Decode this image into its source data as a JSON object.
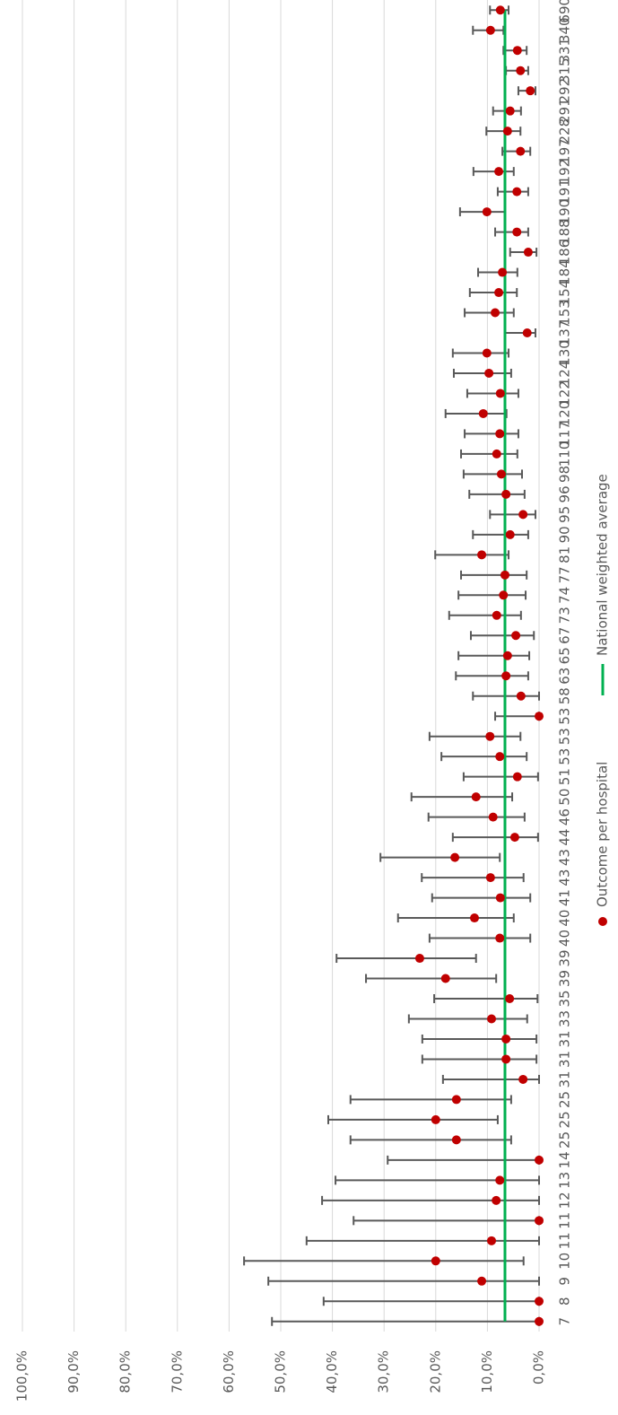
{
  "chart_data": {
    "type": "errorbar",
    "categories": [
      "7",
      "8",
      "9",
      "10",
      "11",
      "11",
      "12",
      "13",
      "14",
      "25",
      "25",
      "25",
      "31",
      "31",
      "31",
      "33",
      "35",
      "39",
      "39",
      "40",
      "40",
      "41",
      "43",
      "43",
      "44",
      "46",
      "50",
      "51",
      "53",
      "53",
      "53",
      "58",
      "63",
      "65",
      "67",
      "73",
      "74",
      "77",
      "81",
      "90",
      "95",
      "96",
      "98",
      "110",
      "117",
      "120",
      "122",
      "124",
      "130",
      "137",
      "153",
      "154",
      "184",
      "186",
      "188",
      "190",
      "191",
      "192",
      "197",
      "228",
      "291",
      "292",
      "315",
      "331",
      "340",
      "690"
    ],
    "series": [
      {
        "name": "Outcome per hospital",
        "color": "#c00000",
        "error_color": "#595959",
        "values": [
          0,
          0,
          11.1,
          20.0,
          9.2,
          0,
          8.3,
          7.6,
          0,
          16.0,
          20.0,
          16.0,
          3.1,
          6.4,
          6.4,
          9.2,
          5.7,
          18.1,
          23.1,
          7.6,
          12.5,
          7.5,
          9.4,
          16.3,
          4.7,
          8.9,
          12.2,
          4.2,
          7.6,
          9.5,
          0,
          3.5,
          6.4,
          6.1,
          4.5,
          8.2,
          6.9,
          6.6,
          11.1,
          5.6,
          3.1,
          6.4,
          7.3,
          8.2,
          7.6,
          10.8,
          7.5,
          9.7,
          10.1,
          2.3,
          8.5,
          7.8,
          7.1,
          2.1,
          4.3,
          10.1,
          4.3,
          7.8,
          3.6,
          6.1,
          5.6,
          1.7,
          3.6,
          4.2,
          9.4,
          7.5
        ],
        "low": [
          0,
          0,
          0,
          3.0,
          0,
          0,
          0,
          0,
          0,
          5.4,
          8.0,
          5.4,
          0,
          0.5,
          0.5,
          2.3,
          0.3,
          8.3,
          12.2,
          1.7,
          4.9,
          1.7,
          3.0,
          7.6,
          0.2,
          2.8,
          5.2,
          0.2,
          2.4,
          3.6,
          0,
          0,
          2.1,
          1.9,
          1.0,
          3.5,
          2.6,
          2.4,
          5.9,
          2.1,
          0.7,
          2.8,
          3.3,
          4.2,
          4.0,
          6.3,
          4.0,
          5.4,
          5.9,
          0.7,
          4.9,
          4.3,
          4.2,
          0.5,
          2.1,
          6.6,
          2.1,
          4.9,
          1.7,
          3.6,
          3.5,
          0.7,
          2.1,
          2.4,
          6.9,
          5.9
        ],
        "high": [
          51.7,
          41.7,
          52.4,
          57.1,
          45.0,
          35.9,
          42.0,
          39.4,
          29.3,
          36.5,
          40.8,
          36.5,
          18.6,
          22.6,
          22.6,
          25.2,
          20.3,
          33.5,
          39.2,
          21.2,
          27.3,
          20.7,
          22.7,
          30.7,
          16.7,
          21.4,
          24.7,
          14.6,
          18.9,
          21.2,
          8.5,
          12.8,
          16.1,
          15.6,
          13.2,
          17.4,
          15.6,
          15.1,
          20.1,
          12.8,
          9.5,
          13.5,
          14.6,
          15.1,
          14.4,
          18.1,
          13.9,
          16.5,
          16.7,
          6.6,
          14.4,
          13.4,
          11.8,
          5.6,
          8.5,
          15.3,
          8.0,
          12.7,
          7.1,
          10.2,
          8.9,
          4.0,
          6.4,
          6.9,
          12.8,
          9.5
        ]
      },
      {
        "name": "National weighted average",
        "color": "#00b050",
        "value": 6.6
      }
    ],
    "ylim": [
      0,
      100
    ],
    "yticks": [
      {
        "value": 0,
        "label": "0,0%"
      },
      {
        "value": 10,
        "label": "10,0%"
      },
      {
        "value": 20,
        "label": "20,0%"
      },
      {
        "value": 30,
        "label": "30,0%"
      },
      {
        "value": 40,
        "label": "40,0%"
      },
      {
        "value": 50,
        "label": "50,0%"
      },
      {
        "value": 60,
        "label": "60,0%"
      },
      {
        "value": 70,
        "label": "70,0%"
      },
      {
        "value": 80,
        "label": "80,0%"
      },
      {
        "value": 90,
        "label": "90,0%"
      },
      {
        "value": 100,
        "label": "100,0%"
      }
    ],
    "grid": true
  }
}
